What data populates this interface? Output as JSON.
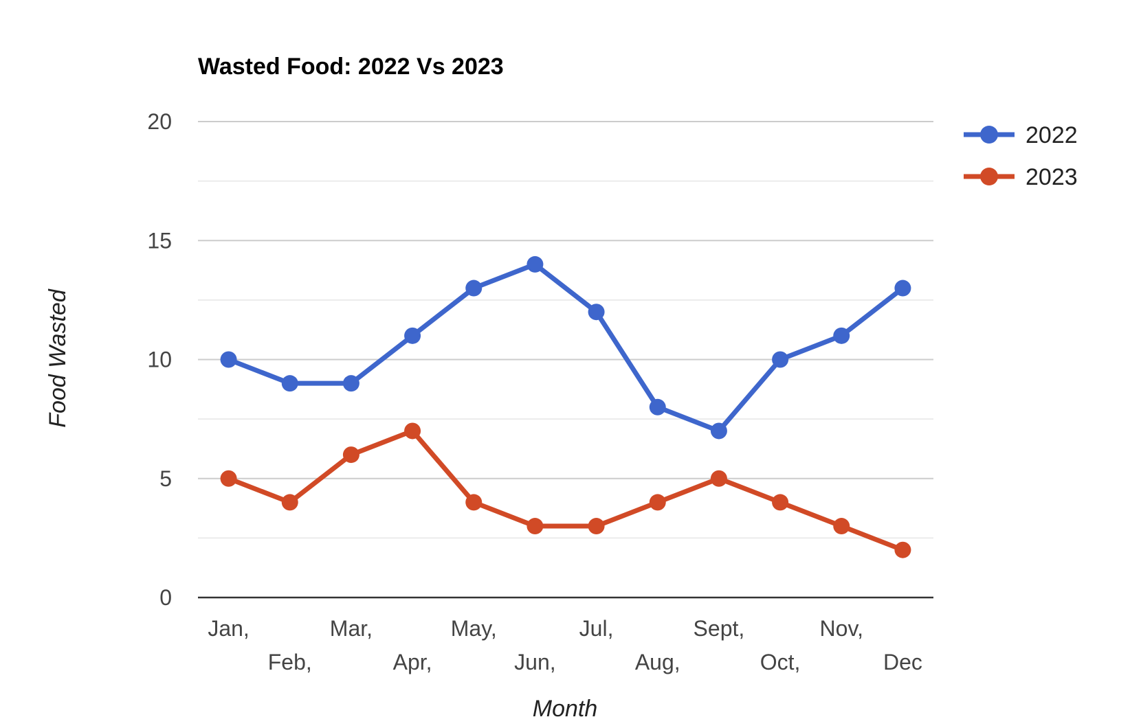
{
  "chart_data": {
    "type": "line",
    "title": "Wasted Food: 2022 Vs 2023",
    "xlabel": "Month",
    "ylabel": "Food Wasted",
    "categories": [
      "Jan,",
      "Feb,",
      "Mar,",
      "Apr,",
      "May,",
      "Jun,",
      "Jul,",
      "Aug,",
      "Sept,",
      "Oct,",
      "Nov,",
      "Dec"
    ],
    "ylim": [
      0,
      20
    ],
    "yticks": [
      "0",
      "5",
      "10",
      "15",
      "20"
    ],
    "grid": true,
    "legend_position": "right",
    "series": [
      {
        "name": "2022",
        "color": "#3e66cc",
        "values": [
          10,
          9,
          9,
          11,
          13,
          14,
          12,
          8,
          7,
          10,
          11,
          13
        ]
      },
      {
        "name": "2023",
        "color": "#d14a26",
        "values": [
          5,
          4,
          6,
          7,
          4,
          3,
          3,
          4,
          5,
          4,
          3,
          2
        ]
      }
    ]
  }
}
